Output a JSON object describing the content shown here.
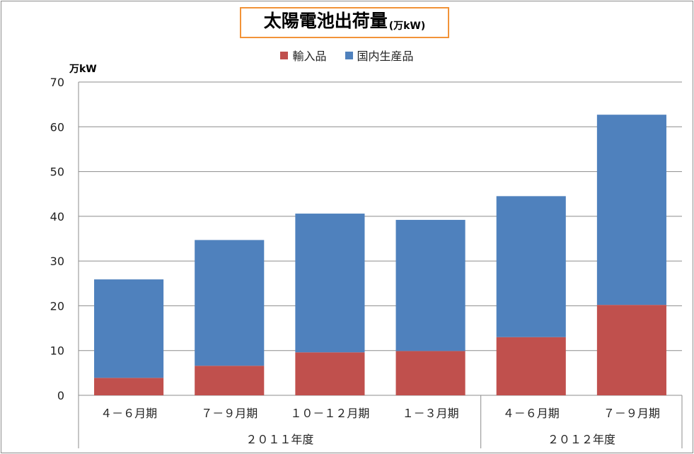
{
  "chart_data": {
    "type": "bar",
    "stacked": true,
    "title": "太陽電池出荷量",
    "title_unit": "(万kW)",
    "ylabel": "万kW",
    "ylim": [
      0,
      70
    ],
    "yticks": [
      0,
      10,
      20,
      30,
      40,
      50,
      60,
      70
    ],
    "grid": true,
    "legend_position": "top-center",
    "categories": [
      "４－６月期",
      "７－９月期",
      "１０－１２月期",
      "１－３月期",
      "４－６月期",
      "７－９月期"
    ],
    "category_groups": [
      {
        "label": "２０１１年度",
        "span": 4
      },
      {
        "label": "２０１２年度",
        "span": 2
      }
    ],
    "series": [
      {
        "name": "輸入品",
        "color": "#c0504d",
        "values": [
          3.9,
          6.6,
          9.6,
          9.9,
          13.0,
          20.2
        ]
      },
      {
        "name": "国内生産品",
        "color": "#4f81bd",
        "values": [
          22.0,
          28.1,
          31.0,
          29.3,
          31.5,
          42.5
        ]
      }
    ]
  }
}
